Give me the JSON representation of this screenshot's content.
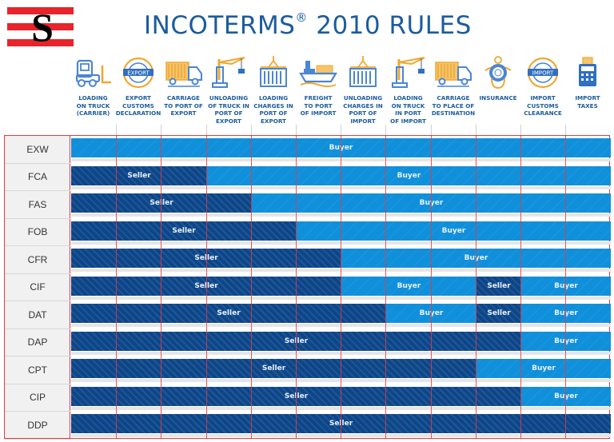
{
  "logo": {
    "letter": "S",
    "colors": {
      "stripe": "#e8232a",
      "letter": "#000000"
    }
  },
  "title": {
    "text": "INCOTERMS",
    "mark": "®",
    "suffix": " 2010 RULES"
  },
  "colors": {
    "title": "#1b5c9e",
    "seller": "#0c4689",
    "buyer": "#1090db",
    "grid": "#e63a3f",
    "label_bg": "#f1f1f1"
  },
  "columns": [
    {
      "label": "Loading\non truck\n(carrier)",
      "icon": "forklift-icon"
    },
    {
      "label": "Export\ncustoms\ndeclaration",
      "icon": "export-stamp-icon"
    },
    {
      "label": "Carriage\nto port of\nexport",
      "icon": "truck-icon"
    },
    {
      "label": "Unloading\nof truck in\nport of\nexport",
      "icon": "crane-icon"
    },
    {
      "label": "Loading\ncharges in\nport of\nexport",
      "icon": "container-hook-icon"
    },
    {
      "label": "Freight\nto port\nof import",
      "icon": "cargo-ship-icon"
    },
    {
      "label": "Unloading\ncharges in\nport of\nimport",
      "icon": "container-hook-icon"
    },
    {
      "label": "Loading\non truck\nin port\nof import",
      "icon": "crane-icon"
    },
    {
      "label": "Carriage\nto place of\ndestination",
      "icon": "truck-icon"
    },
    {
      "label": "Insurance",
      "icon": "lifebuoy-icon"
    },
    {
      "label": "Import\ncustoms\nclearance",
      "icon": "import-stamp-icon"
    },
    {
      "label": "Import\ntaxes",
      "icon": "calculator-icon"
    }
  ],
  "party_labels": {
    "seller": "Seller",
    "buyer": "Buyer"
  },
  "rows": [
    {
      "term": "EXW",
      "segments": [
        {
          "party": "buyer",
          "from": 0,
          "to": 11,
          "label": "Buyer"
        }
      ]
    },
    {
      "term": "FCA",
      "segments": [
        {
          "party": "seller",
          "from": 0,
          "to": 2,
          "label": "Seller"
        },
        {
          "party": "buyer",
          "from": 3,
          "to": 11,
          "label": "Buyer"
        }
      ]
    },
    {
      "term": "FAS",
      "segments": [
        {
          "party": "seller",
          "from": 0,
          "to": 3,
          "label": "Seller"
        },
        {
          "party": "buyer",
          "from": 4,
          "to": 11,
          "label": "Buyer"
        }
      ]
    },
    {
      "term": "FOB",
      "segments": [
        {
          "party": "seller",
          "from": 0,
          "to": 4,
          "label": "Seller"
        },
        {
          "party": "buyer",
          "from": 5,
          "to": 11,
          "label": "Buyer"
        }
      ]
    },
    {
      "term": "CFR",
      "segments": [
        {
          "party": "seller",
          "from": 0,
          "to": 5,
          "label": "Seller"
        },
        {
          "party": "buyer",
          "from": 6,
          "to": 11,
          "label": "Buyer"
        }
      ]
    },
    {
      "term": "CIF",
      "segments": [
        {
          "party": "seller",
          "from": 0,
          "to": 5,
          "label": "Seller"
        },
        {
          "party": "buyer",
          "from": 6,
          "to": 8,
          "label": "Buyer"
        },
        {
          "party": "seller",
          "from": 9,
          "to": 9,
          "label": "Seller"
        },
        {
          "party": "buyer",
          "from": 10,
          "to": 11,
          "label": "Buyer"
        }
      ]
    },
    {
      "term": "DAT",
      "segments": [
        {
          "party": "seller",
          "from": 0,
          "to": 6,
          "label": "Seller"
        },
        {
          "party": "buyer",
          "from": 7,
          "to": 8,
          "label": "Buyer"
        },
        {
          "party": "seller",
          "from": 9,
          "to": 9,
          "label": "Seller"
        },
        {
          "party": "buyer",
          "from": 10,
          "to": 11,
          "label": "Buyer"
        }
      ]
    },
    {
      "term": "DAP",
      "segments": [
        {
          "party": "seller",
          "from": 0,
          "to": 9,
          "label": "Seller"
        },
        {
          "party": "buyer",
          "from": 10,
          "to": 11,
          "label": "Buyer"
        }
      ]
    },
    {
      "term": "CPT",
      "segments": [
        {
          "party": "seller",
          "from": 0,
          "to": 8,
          "label": "Seller"
        },
        {
          "party": "buyer",
          "from": 9,
          "to": 11,
          "label": "Buyer"
        }
      ]
    },
    {
      "term": "CIP",
      "segments": [
        {
          "party": "seller",
          "from": 0,
          "to": 9,
          "label": "Seller"
        },
        {
          "party": "buyer",
          "from": 10,
          "to": 11,
          "label": "Buyer"
        }
      ]
    },
    {
      "term": "DDP",
      "segments": [
        {
          "party": "seller",
          "from": 0,
          "to": 11,
          "label": "Seller"
        }
      ]
    }
  ]
}
